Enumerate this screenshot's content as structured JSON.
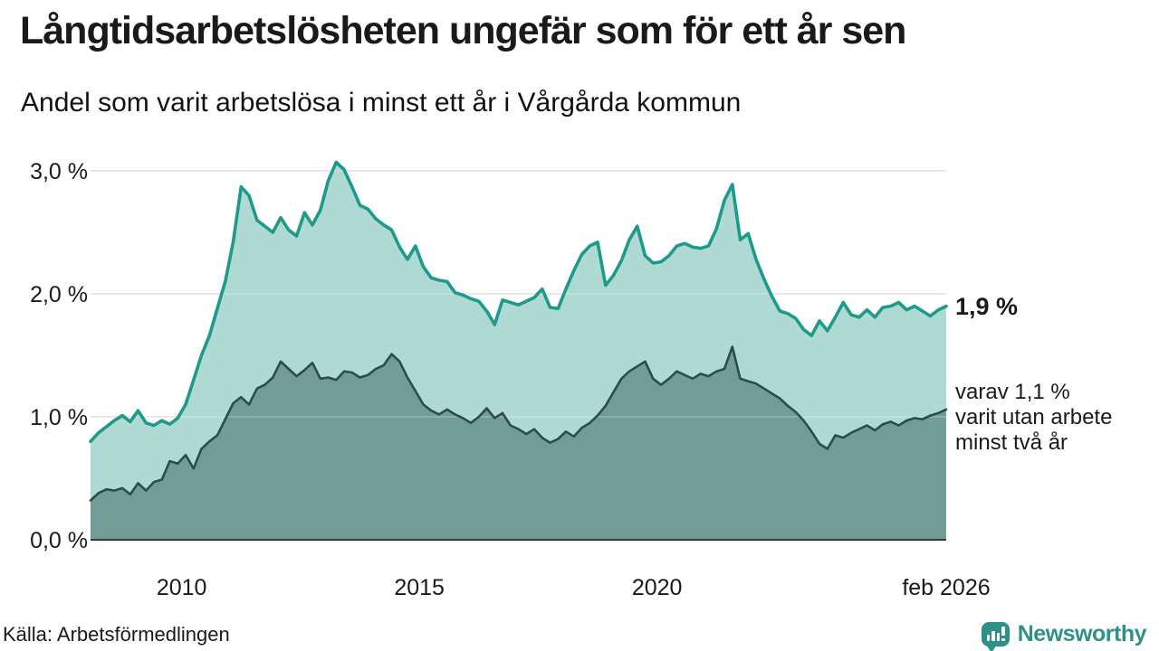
{
  "header": {
    "title": "Långtidsarbetslösheten ungefär som för ett år sen",
    "subtitle": "Andel som varit arbetslösa i minst ett år i Vårgårda kommun"
  },
  "annotations": {
    "latest_total_label": "1,9 %",
    "note_lines": [
      "varav 1,1 %",
      "varit utan arbete",
      "minst två år"
    ]
  },
  "footer": {
    "source": "Källa: Arbetsförmedlingen",
    "brand": "Newsworthy",
    "brand_icon": "speech-bubble-bar-chart-icon",
    "brand_color": "#2e9188"
  },
  "colors": {
    "total_line": "#1d9a8a",
    "total_fill": "#afdad3",
    "two_year_line": "#2d4d47",
    "two_year_fill": "#729d97",
    "gridline": "#d9d9d9",
    "axis": "#3a3a3a",
    "text": "#1a1a1a"
  },
  "chart_data": {
    "type": "area",
    "title": "Långtidsarbetslösheten ungefär som för ett år sen",
    "subtitle": "Andel som varit arbetslösa i minst ett år i Vårgårda kommun",
    "unit": "%",
    "x_start": 2008.0833,
    "x_end": 2026.0833,
    "x_step_years": 0.1667,
    "ylim": [
      0,
      3.1
    ],
    "grid": true,
    "y_ticks": {
      "values": [
        0,
        1,
        2,
        3
      ],
      "labels": [
        "0,0 %",
        "1,0 %",
        "2,0 %",
        "3,0 %"
      ]
    },
    "x_ticks": {
      "values": [
        2010,
        2015,
        2020,
        2026.0833
      ],
      "labels": [
        "2010",
        "2015",
        "2020",
        "feb 2026"
      ]
    },
    "latest": {
      "total_pct": 1.9,
      "at_least_two_years_pct": 1.1,
      "period": "feb 2026"
    },
    "series": [
      {
        "name": "Andel arbetslösa minst ett år",
        "color": "#1d9a8a",
        "fill": "#afdad3",
        "values": [
          0.8,
          0.87,
          0.92,
          0.97,
          1.01,
          0.96,
          1.05,
          0.95,
          0.93,
          0.97,
          0.94,
          0.99,
          1.1,
          1.3,
          1.5,
          1.66,
          1.88,
          2.1,
          2.42,
          2.87,
          2.8,
          2.6,
          2.55,
          2.5,
          2.62,
          2.52,
          2.47,
          2.66,
          2.56,
          2.68,
          2.92,
          3.07,
          3.01,
          2.87,
          2.72,
          2.69,
          2.61,
          2.56,
          2.52,
          2.38,
          2.28,
          2.39,
          2.22,
          2.13,
          2.11,
          2.1,
          2.01,
          1.99,
          1.96,
          1.94,
          1.86,
          1.75,
          1.95,
          1.93,
          1.91,
          1.94,
          1.97,
          2.04,
          1.89,
          1.88,
          2.04,
          2.19,
          2.32,
          2.39,
          2.42,
          2.07,
          2.15,
          2.27,
          2.44,
          2.55,
          2.31,
          2.25,
          2.26,
          2.31,
          2.39,
          2.41,
          2.38,
          2.37,
          2.39,
          2.53,
          2.76,
          2.89,
          2.44,
          2.49,
          2.28,
          2.12,
          1.98,
          1.86,
          1.84,
          1.8,
          1.71,
          1.66,
          1.78,
          1.7,
          1.81,
          1.93,
          1.83,
          1.81,
          1.87,
          1.81,
          1.89,
          1.9,
          1.93,
          1.87,
          1.9,
          1.86,
          1.82,
          1.87,
          1.9
        ]
      },
      {
        "name": "varav utan arbete minst två år",
        "color": "#2d4d47",
        "fill": "#729d97",
        "values": [
          0.32,
          0.38,
          0.41,
          0.4,
          0.42,
          0.37,
          0.46,
          0.4,
          0.47,
          0.49,
          0.64,
          0.62,
          0.69,
          0.58,
          0.74,
          0.8,
          0.85,
          0.98,
          1.11,
          1.16,
          1.1,
          1.23,
          1.26,
          1.32,
          1.45,
          1.39,
          1.33,
          1.38,
          1.44,
          1.31,
          1.32,
          1.3,
          1.37,
          1.36,
          1.32,
          1.34,
          1.39,
          1.42,
          1.51,
          1.45,
          1.32,
          1.21,
          1.1,
          1.05,
          1.02,
          1.06,
          1.02,
          0.99,
          0.95,
          1.0,
          1.07,
          0.99,
          1.03,
          0.93,
          0.9,
          0.86,
          0.9,
          0.83,
          0.79,
          0.82,
          0.88,
          0.84,
          0.91,
          0.95,
          1.01,
          1.09,
          1.2,
          1.31,
          1.37,
          1.41,
          1.45,
          1.31,
          1.26,
          1.31,
          1.37,
          1.34,
          1.31,
          1.35,
          1.33,
          1.37,
          1.39,
          1.57,
          1.31,
          1.29,
          1.27,
          1.23,
          1.19,
          1.15,
          1.09,
          1.04,
          0.97,
          0.88,
          0.78,
          0.74,
          0.85,
          0.83,
          0.87,
          0.9,
          0.93,
          0.89,
          0.94,
          0.96,
          0.93,
          0.97,
          0.99,
          0.98,
          1.01,
          1.03,
          1.06
        ]
      }
    ]
  }
}
